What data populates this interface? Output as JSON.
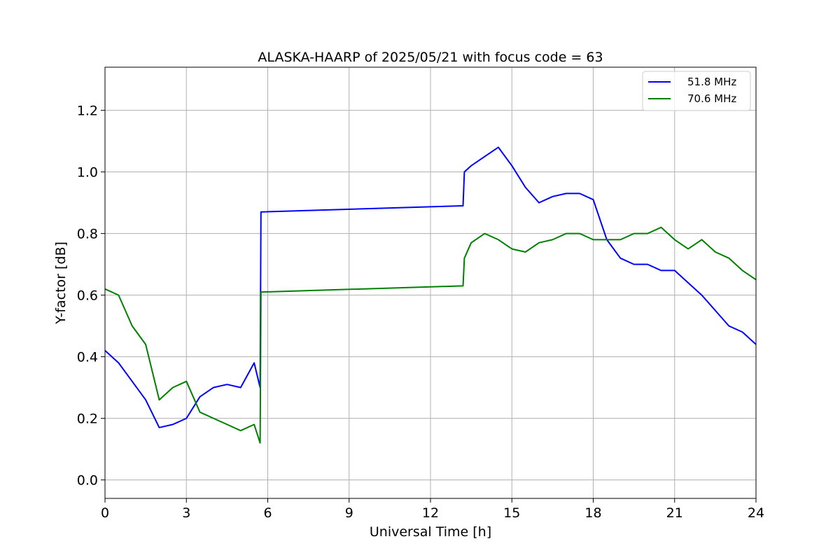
{
  "chart_data": {
    "type": "line",
    "title": "ALASKA-HAARP of 2025/05/21 with focus code = 63",
    "xlabel": "Universal Time [h]",
    "ylabel": "Y-factor [dB]",
    "xlim": [
      0,
      24
    ],
    "ylim": [
      -0.06,
      1.34
    ],
    "xticks": [
      0,
      3,
      6,
      9,
      12,
      15,
      18,
      21,
      24
    ],
    "yticks": [
      0.0,
      0.2,
      0.4,
      0.6,
      0.8,
      1.0,
      1.2
    ],
    "xtick_labels": [
      "0",
      "3",
      "6",
      "9",
      "12",
      "15",
      "18",
      "21",
      "24"
    ],
    "ytick_labels": [
      "0.0",
      "0.2",
      "0.4",
      "0.6",
      "0.8",
      "1.0",
      "1.2"
    ],
    "grid": true,
    "legend_position": "top-right",
    "series": [
      {
        "name": "51.8 MHz",
        "color": "#0000ff",
        "x": [
          0,
          0.5,
          1.0,
          1.5,
          2.0,
          2.5,
          3.0,
          3.5,
          4.0,
          4.5,
          5.0,
          5.5,
          5.72,
          5.75,
          13.2,
          13.25,
          13.5,
          14.0,
          14.5,
          15.0,
          15.5,
          16.0,
          16.5,
          17.0,
          17.5,
          18.0,
          18.5,
          19.0,
          19.5,
          20.0,
          20.5,
          21.0,
          21.5,
          22.0,
          22.5,
          23.0,
          23.5,
          24.0
        ],
        "y": [
          0.42,
          0.38,
          0.32,
          0.26,
          0.17,
          0.18,
          0.2,
          0.27,
          0.3,
          0.31,
          0.3,
          0.38,
          0.3,
          0.87,
          0.89,
          1.0,
          1.02,
          1.05,
          1.08,
          1.02,
          0.95,
          0.9,
          0.92,
          0.93,
          0.93,
          0.91,
          0.78,
          0.72,
          0.7,
          0.7,
          0.68,
          0.68,
          0.64,
          0.6,
          0.55,
          0.5,
          0.48,
          0.44
        ]
      },
      {
        "name": "70.6 MHz",
        "color": "#008000",
        "x": [
          0,
          0.5,
          1.0,
          1.5,
          2.0,
          2.5,
          3.0,
          3.5,
          4.0,
          4.5,
          5.0,
          5.5,
          5.72,
          5.75,
          13.2,
          13.25,
          13.5,
          14.0,
          14.5,
          15.0,
          15.5,
          16.0,
          16.5,
          17.0,
          17.5,
          18.0,
          18.5,
          19.0,
          19.5,
          20.0,
          20.5,
          21.0,
          21.5,
          22.0,
          22.5,
          23.0,
          23.5,
          24.0
        ],
        "y": [
          0.62,
          0.6,
          0.5,
          0.44,
          0.26,
          0.3,
          0.32,
          0.22,
          0.2,
          0.18,
          0.16,
          0.18,
          0.12,
          0.61,
          0.63,
          0.72,
          0.77,
          0.8,
          0.78,
          0.75,
          0.74,
          0.77,
          0.78,
          0.8,
          0.8,
          0.78,
          0.78,
          0.78,
          0.8,
          0.8,
          0.82,
          0.78,
          0.75,
          0.78,
          0.74,
          0.72,
          0.68,
          0.65
        ]
      }
    ]
  }
}
